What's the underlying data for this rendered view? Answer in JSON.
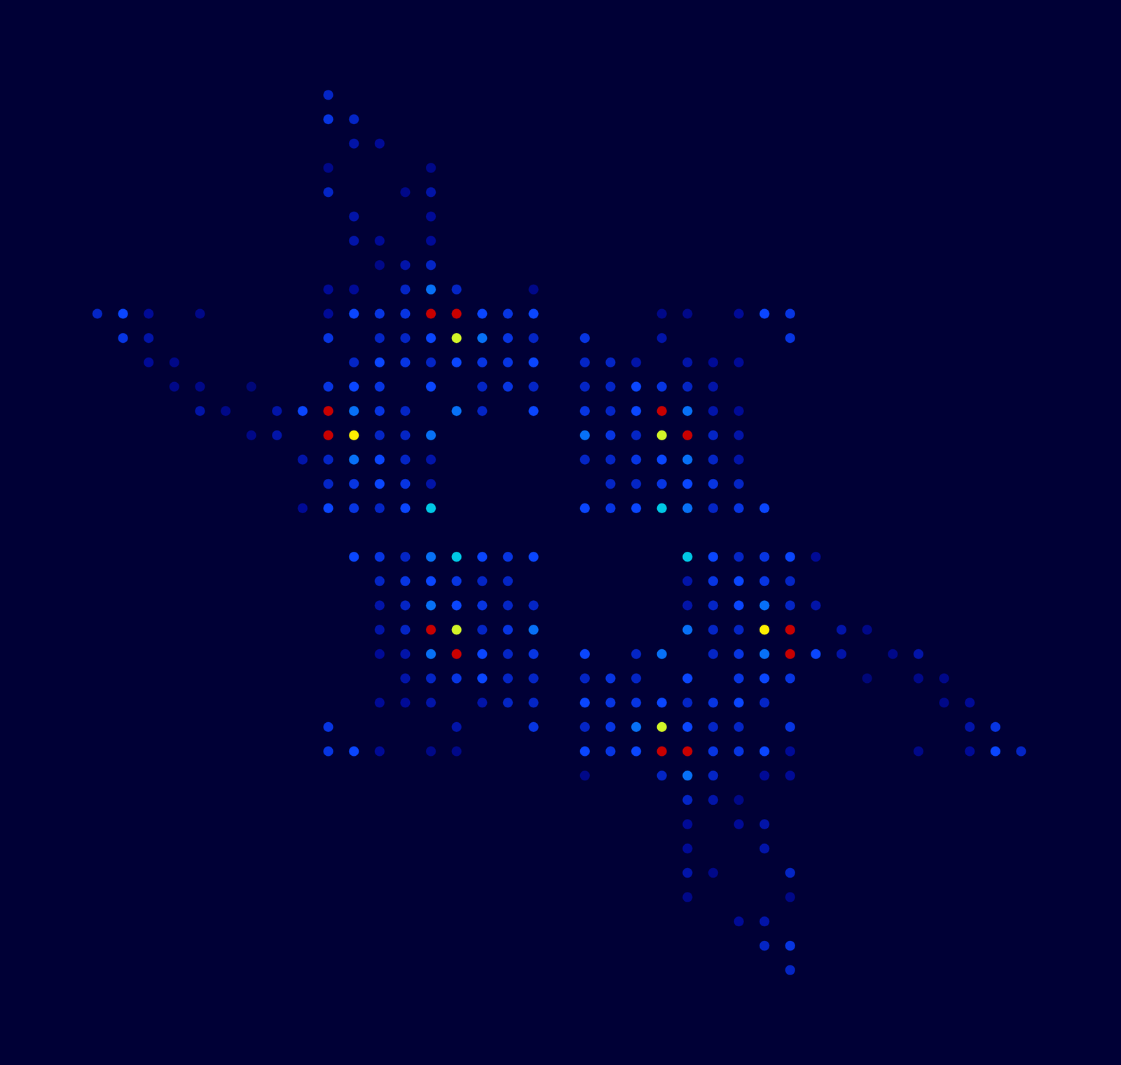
{
  "chart_data": {
    "type": "heatmap",
    "tick_labels": false,
    "grid": false,
    "xlim": [
      -3.6,
      39.7
    ],
    "ylim": [
      39.7,
      -3.7
    ],
    "zlim": [
      0,
      1
    ],
    "cells": [
      [
        9,
        0,
        0.2
      ],
      [
        9,
        1,
        0.25
      ],
      [
        10,
        1,
        0.2
      ],
      [
        10,
        2,
        0.15
      ],
      [
        11,
        2,
        0.12
      ],
      [
        9,
        3,
        0.1
      ],
      [
        13,
        3,
        0.1
      ],
      [
        9,
        4,
        0.2
      ],
      [
        12,
        4,
        0.1
      ],
      [
        13,
        4,
        0.15
      ],
      [
        10,
        5,
        0.15
      ],
      [
        13,
        5,
        0.12
      ],
      [
        10,
        6,
        0.15
      ],
      [
        11,
        6,
        0.12
      ],
      [
        13,
        6,
        0.12
      ],
      [
        11,
        7,
        0.1
      ],
      [
        12,
        7,
        0.15
      ],
      [
        13,
        7,
        0.2
      ],
      [
        9,
        8,
        0.12
      ],
      [
        10,
        8,
        0.12
      ],
      [
        12,
        8,
        0.2
      ],
      [
        13,
        8,
        0.35
      ],
      [
        14,
        8,
        0.2
      ],
      [
        17,
        8,
        0.1
      ],
      [
        0,
        9,
        0.2
      ],
      [
        1,
        9,
        0.3
      ],
      [
        2,
        9,
        0.12
      ],
      [
        4,
        9,
        0.1
      ],
      [
        9,
        9,
        0.12
      ],
      [
        10,
        9,
        0.3
      ],
      [
        11,
        9,
        0.25
      ],
      [
        12,
        9,
        0.25
      ],
      [
        13,
        9,
        1.0
      ],
      [
        14,
        9,
        1.0
      ],
      [
        15,
        9,
        0.3
      ],
      [
        16,
        9,
        0.25
      ],
      [
        17,
        9,
        0.3
      ],
      [
        22,
        9,
        0.1
      ],
      [
        23,
        9,
        0.1
      ],
      [
        25,
        9,
        0.12
      ],
      [
        26,
        9,
        0.3
      ],
      [
        27,
        9,
        0.25
      ],
      [
        1,
        10,
        0.25
      ],
      [
        2,
        10,
        0.15
      ],
      [
        9,
        10,
        0.25
      ],
      [
        11,
        10,
        0.2
      ],
      [
        12,
        10,
        0.2
      ],
      [
        13,
        10,
        0.3
      ],
      [
        14,
        10,
        0.7
      ],
      [
        15,
        10,
        0.35
      ],
      [
        16,
        10,
        0.25
      ],
      [
        17,
        10,
        0.2
      ],
      [
        19,
        10,
        0.25
      ],
      [
        22,
        10,
        0.15
      ],
      [
        27,
        10,
        0.25
      ],
      [
        2,
        11,
        0.12
      ],
      [
        3,
        11,
        0.1
      ],
      [
        10,
        11,
        0.2
      ],
      [
        11,
        11,
        0.3
      ],
      [
        12,
        11,
        0.25
      ],
      [
        13,
        11,
        0.2
      ],
      [
        14,
        11,
        0.3
      ],
      [
        15,
        11,
        0.25
      ],
      [
        16,
        11,
        0.25
      ],
      [
        17,
        11,
        0.3
      ],
      [
        19,
        11,
        0.2
      ],
      [
        20,
        11,
        0.2
      ],
      [
        21,
        11,
        0.15
      ],
      [
        23,
        11,
        0.15
      ],
      [
        24,
        11,
        0.12
      ],
      [
        25,
        11,
        0.12
      ],
      [
        3,
        12,
        0.1
      ],
      [
        4,
        12,
        0.1
      ],
      [
        6,
        12,
        0.08
      ],
      [
        9,
        12,
        0.25
      ],
      [
        10,
        12,
        0.3
      ],
      [
        11,
        12,
        0.25
      ],
      [
        13,
        12,
        0.3
      ],
      [
        15,
        12,
        0.2
      ],
      [
        16,
        12,
        0.25
      ],
      [
        17,
        12,
        0.2
      ],
      [
        19,
        12,
        0.2
      ],
      [
        20,
        12,
        0.2
      ],
      [
        21,
        12,
        0.3
      ],
      [
        22,
        12,
        0.25
      ],
      [
        23,
        12,
        0.2
      ],
      [
        24,
        12,
        0.15
      ],
      [
        4,
        13,
        0.15
      ],
      [
        5,
        13,
        0.1
      ],
      [
        7,
        13,
        0.15
      ],
      [
        8,
        13,
        0.3
      ],
      [
        9,
        13,
        1.0
      ],
      [
        10,
        13,
        0.35
      ],
      [
        11,
        13,
        0.25
      ],
      [
        12,
        13,
        0.2
      ],
      [
        14,
        13,
        0.35
      ],
      [
        15,
        13,
        0.2
      ],
      [
        17,
        13,
        0.3
      ],
      [
        19,
        13,
        0.25
      ],
      [
        20,
        13,
        0.2
      ],
      [
        21,
        13,
        0.3
      ],
      [
        22,
        13,
        1.0
      ],
      [
        23,
        13,
        0.35
      ],
      [
        24,
        13,
        0.15
      ],
      [
        25,
        13,
        0.12
      ],
      [
        6,
        14,
        0.1
      ],
      [
        7,
        14,
        0.15
      ],
      [
        9,
        14,
        1.0
      ],
      [
        10,
        14,
        0.75
      ],
      [
        11,
        14,
        0.2
      ],
      [
        12,
        14,
        0.2
      ],
      [
        13,
        14,
        0.35
      ],
      [
        19,
        14,
        0.35
      ],
      [
        20,
        14,
        0.25
      ],
      [
        21,
        14,
        0.2
      ],
      [
        22,
        14,
        0.7
      ],
      [
        23,
        14,
        1.0
      ],
      [
        24,
        14,
        0.2
      ],
      [
        25,
        14,
        0.15
      ],
      [
        8,
        15,
        0.15
      ],
      [
        9,
        15,
        0.2
      ],
      [
        10,
        15,
        0.35
      ],
      [
        11,
        15,
        0.3
      ],
      [
        12,
        15,
        0.2
      ],
      [
        13,
        15,
        0.15
      ],
      [
        19,
        15,
        0.2
      ],
      [
        20,
        15,
        0.2
      ],
      [
        21,
        15,
        0.25
      ],
      [
        22,
        15,
        0.3
      ],
      [
        23,
        15,
        0.35
      ],
      [
        24,
        15,
        0.2
      ],
      [
        25,
        15,
        0.15
      ],
      [
        9,
        16,
        0.2
      ],
      [
        10,
        16,
        0.25
      ],
      [
        11,
        16,
        0.3
      ],
      [
        12,
        16,
        0.25
      ],
      [
        13,
        16,
        0.15
      ],
      [
        20,
        16,
        0.2
      ],
      [
        21,
        16,
        0.2
      ],
      [
        22,
        16,
        0.25
      ],
      [
        23,
        16,
        0.3
      ],
      [
        24,
        16,
        0.25
      ],
      [
        25,
        16,
        0.2
      ],
      [
        8,
        17,
        0.12
      ],
      [
        9,
        17,
        0.3
      ],
      [
        10,
        17,
        0.25
      ],
      [
        11,
        17,
        0.2
      ],
      [
        12,
        17,
        0.3
      ],
      [
        13,
        17,
        0.45
      ],
      [
        19,
        17,
        0.3
      ],
      [
        20,
        17,
        0.25
      ],
      [
        21,
        17,
        0.3
      ],
      [
        22,
        17,
        0.45
      ],
      [
        23,
        17,
        0.35
      ],
      [
        24,
        17,
        0.2
      ],
      [
        25,
        17,
        0.25
      ],
      [
        26,
        17,
        0.3
      ],
      [
        28,
        19,
        0.12
      ],
      [
        27,
        19,
        0.3
      ],
      [
        26,
        19,
        0.25
      ],
      [
        25,
        19,
        0.2
      ],
      [
        24,
        19,
        0.3
      ],
      [
        23,
        19,
        0.45
      ],
      [
        17,
        19,
        0.3
      ],
      [
        16,
        19,
        0.25
      ],
      [
        15,
        19,
        0.3
      ],
      [
        14,
        19,
        0.45
      ],
      [
        13,
        19,
        0.35
      ],
      [
        12,
        19,
        0.2
      ],
      [
        11,
        19,
        0.25
      ],
      [
        10,
        19,
        0.3
      ],
      [
        27,
        20,
        0.2
      ],
      [
        26,
        20,
        0.25
      ],
      [
        25,
        20,
        0.3
      ],
      [
        24,
        20,
        0.25
      ],
      [
        23,
        20,
        0.15
      ],
      [
        16,
        20,
        0.2
      ],
      [
        15,
        20,
        0.2
      ],
      [
        14,
        20,
        0.25
      ],
      [
        13,
        20,
        0.3
      ],
      [
        12,
        20,
        0.25
      ],
      [
        11,
        20,
        0.2
      ],
      [
        28,
        21,
        0.15
      ],
      [
        27,
        21,
        0.2
      ],
      [
        26,
        21,
        0.35
      ],
      [
        25,
        21,
        0.3
      ],
      [
        24,
        21,
        0.2
      ],
      [
        23,
        21,
        0.15
      ],
      [
        17,
        21,
        0.2
      ],
      [
        16,
        21,
        0.2
      ],
      [
        15,
        21,
        0.25
      ],
      [
        14,
        21,
        0.3
      ],
      [
        13,
        21,
        0.35
      ],
      [
        12,
        21,
        0.2
      ],
      [
        11,
        21,
        0.15
      ],
      [
        30,
        22,
        0.1
      ],
      [
        29,
        22,
        0.15
      ],
      [
        27,
        22,
        1.0
      ],
      [
        26,
        22,
        0.75
      ],
      [
        25,
        22,
        0.2
      ],
      [
        24,
        22,
        0.2
      ],
      [
        23,
        22,
        0.35
      ],
      [
        17,
        22,
        0.35
      ],
      [
        16,
        22,
        0.25
      ],
      [
        15,
        22,
        0.2
      ],
      [
        14,
        22,
        0.7
      ],
      [
        13,
        22,
        1.0
      ],
      [
        12,
        22,
        0.2
      ],
      [
        11,
        22,
        0.15
      ],
      [
        32,
        23,
        0.15
      ],
      [
        31,
        23,
        0.1
      ],
      [
        29,
        23,
        0.15
      ],
      [
        28,
        23,
        0.3
      ],
      [
        27,
        23,
        1.0
      ],
      [
        26,
        23,
        0.35
      ],
      [
        25,
        23,
        0.25
      ],
      [
        24,
        23,
        0.2
      ],
      [
        22,
        23,
        0.35
      ],
      [
        21,
        23,
        0.2
      ],
      [
        19,
        23,
        0.3
      ],
      [
        17,
        23,
        0.25
      ],
      [
        16,
        23,
        0.2
      ],
      [
        15,
        23,
        0.3
      ],
      [
        14,
        23,
        1.0
      ],
      [
        13,
        23,
        0.35
      ],
      [
        12,
        23,
        0.15
      ],
      [
        11,
        23,
        0.12
      ],
      [
        33,
        24,
        0.1
      ],
      [
        32,
        24,
        0.1
      ],
      [
        30,
        24,
        0.08
      ],
      [
        27,
        24,
        0.25
      ],
      [
        26,
        24,
        0.3
      ],
      [
        25,
        24,
        0.25
      ],
      [
        23,
        24,
        0.3
      ],
      [
        21,
        24,
        0.2
      ],
      [
        20,
        24,
        0.25
      ],
      [
        19,
        24,
        0.2
      ],
      [
        17,
        24,
        0.2
      ],
      [
        16,
        24,
        0.2
      ],
      [
        15,
        24,
        0.3
      ],
      [
        14,
        24,
        0.25
      ],
      [
        13,
        24,
        0.2
      ],
      [
        12,
        24,
        0.15
      ],
      [
        34,
        25,
        0.12
      ],
      [
        33,
        25,
        0.1
      ],
      [
        26,
        25,
        0.2
      ],
      [
        25,
        25,
        0.3
      ],
      [
        24,
        25,
        0.25
      ],
      [
        23,
        25,
        0.2
      ],
      [
        22,
        25,
        0.3
      ],
      [
        21,
        25,
        0.25
      ],
      [
        20,
        25,
        0.25
      ],
      [
        19,
        25,
        0.3
      ],
      [
        17,
        25,
        0.2
      ],
      [
        16,
        25,
        0.2
      ],
      [
        15,
        25,
        0.15
      ],
      [
        13,
        25,
        0.15
      ],
      [
        12,
        25,
        0.12
      ],
      [
        11,
        25,
        0.12
      ],
      [
        35,
        26,
        0.25
      ],
      [
        34,
        26,
        0.15
      ],
      [
        27,
        26,
        0.25
      ],
      [
        25,
        26,
        0.2
      ],
      [
        24,
        26,
        0.2
      ],
      [
        23,
        26,
        0.3
      ],
      [
        22,
        26,
        0.7
      ],
      [
        21,
        26,
        0.35
      ],
      [
        20,
        26,
        0.25
      ],
      [
        19,
        26,
        0.2
      ],
      [
        17,
        26,
        0.25
      ],
      [
        14,
        26,
        0.15
      ],
      [
        9,
        26,
        0.25
      ],
      [
        36,
        27,
        0.2
      ],
      [
        35,
        27,
        0.3
      ],
      [
        34,
        27,
        0.12
      ],
      [
        32,
        27,
        0.1
      ],
      [
        27,
        27,
        0.12
      ],
      [
        26,
        27,
        0.3
      ],
      [
        25,
        27,
        0.25
      ],
      [
        24,
        27,
        0.25
      ],
      [
        23,
        27,
        1.0
      ],
      [
        22,
        27,
        1.0
      ],
      [
        21,
        27,
        0.3
      ],
      [
        20,
        27,
        0.25
      ],
      [
        19,
        27,
        0.3
      ],
      [
        14,
        27,
        0.1
      ],
      [
        13,
        27,
        0.1
      ],
      [
        11,
        27,
        0.12
      ],
      [
        10,
        27,
        0.3
      ],
      [
        9,
        27,
        0.25
      ],
      [
        27,
        28,
        0.12
      ],
      [
        26,
        28,
        0.12
      ],
      [
        24,
        28,
        0.2
      ],
      [
        23,
        28,
        0.35
      ],
      [
        22,
        28,
        0.2
      ],
      [
        19,
        28,
        0.1
      ],
      [
        25,
        29,
        0.1
      ],
      [
        24,
        29,
        0.15
      ],
      [
        23,
        29,
        0.2
      ],
      [
        26,
        30,
        0.15
      ],
      [
        25,
        30,
        0.12
      ],
      [
        23,
        30,
        0.12
      ],
      [
        26,
        31,
        0.15
      ],
      [
        23,
        31,
        0.12
      ],
      [
        27,
        32,
        0.2
      ],
      [
        24,
        32,
        0.1
      ],
      [
        23,
        32,
        0.15
      ],
      [
        27,
        33,
        0.1
      ],
      [
        23,
        33,
        0.1
      ],
      [
        26,
        34,
        0.15
      ],
      [
        25,
        34,
        0.12
      ],
      [
        27,
        35,
        0.25
      ],
      [
        26,
        35,
        0.2
      ],
      [
        27,
        36,
        0.2
      ]
    ]
  }
}
